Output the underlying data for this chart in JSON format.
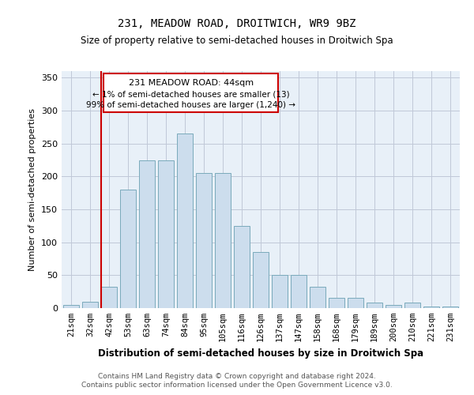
{
  "title": "231, MEADOW ROAD, DROITWICH, WR9 9BZ",
  "subtitle": "Size of property relative to semi-detached houses in Droitwich Spa",
  "xlabel": "Distribution of semi-detached houses by size in Droitwich Spa",
  "ylabel": "Number of semi-detached properties",
  "categories": [
    "21sqm",
    "32sqm",
    "42sqm",
    "53sqm",
    "63sqm",
    "74sqm",
    "84sqm",
    "95sqm",
    "105sqm",
    "116sqm",
    "126sqm",
    "137sqm",
    "147sqm",
    "158sqm",
    "168sqm",
    "179sqm",
    "189sqm",
    "200sqm",
    "210sqm",
    "221sqm",
    "231sqm"
  ],
  "values": [
    5,
    10,
    33,
    180,
    225,
    225,
    265,
    205,
    205,
    125,
    85,
    50,
    50,
    33,
    16,
    16,
    8,
    5,
    8,
    3,
    2
  ],
  "bar_color": "#ccdded",
  "bar_edge_color": "#7aaabb",
  "annotation_title": "231 MEADOW ROAD: 44sqm",
  "annotation_line1": "← 1% of semi-detached houses are smaller (13)",
  "annotation_line2": "99% of semi-detached houses are larger (1,240) →",
  "annotation_color": "#cc0000",
  "ylim": [
    0,
    360
  ],
  "yticks": [
    0,
    50,
    100,
    150,
    200,
    250,
    300,
    350
  ],
  "footer1": "Contains HM Land Registry data © Crown copyright and database right 2024.",
  "footer2": "Contains public sector information licensed under the Open Government Licence v3.0.",
  "bg_color": "#ffffff",
  "plot_bg_color": "#e8f0f8",
  "grid_color": "#c0c8d8"
}
